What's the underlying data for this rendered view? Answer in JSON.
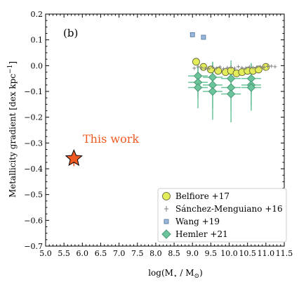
{
  "chart_data": {
    "type": "scatter",
    "panel_label": "(b)",
    "xlabel_main": "log(M",
    "xlabel_sub": "⋆",
    "xlabel_mid": " / M",
    "xlabel_sub2": "⊙",
    "xlabel_end": ")",
    "ylabel": "Metallicity gradient [dex kpc",
    "ylabel_sup": "−1",
    "ylabel_end": "]",
    "xlim": [
      5.0,
      11.5
    ],
    "ylim": [
      -0.7,
      0.2
    ],
    "xticks": [
      {
        "v": 5.0,
        "label": "5.0"
      },
      {
        "v": 5.5,
        "label": "5.5"
      },
      {
        "v": 6.0,
        "label": "6.0"
      },
      {
        "v": 6.5,
        "label": "6.5"
      },
      {
        "v": 7.0,
        "label": "7.0"
      },
      {
        "v": 7.5,
        "label": "7.5"
      },
      {
        "v": 8.0,
        "label": "8.0"
      },
      {
        "v": 8.5,
        "label": "8.5"
      },
      {
        "v": 9.0,
        "label": "9.0"
      },
      {
        "v": 9.5,
        "label": "9.5"
      },
      {
        "v": 10.0,
        "label": "10.0"
      },
      {
        "v": 10.5,
        "label": "10.5"
      },
      {
        "v": 11.0,
        "label": "11.0"
      },
      {
        "v": 11.5,
        "label": "11.5"
      }
    ],
    "yticks": [
      {
        "v": 0.2,
        "label": "0.2"
      },
      {
        "v": 0.1,
        "label": "0.1"
      },
      {
        "v": 0.0,
        "label": "0.0"
      },
      {
        "v": -0.1,
        "label": "−0.1"
      },
      {
        "v": -0.2,
        "label": "−0.2"
      },
      {
        "v": -0.3,
        "label": "−0.3"
      },
      {
        "v": -0.4,
        "label": "−0.4"
      },
      {
        "v": -0.5,
        "label": "−0.5"
      },
      {
        "v": -0.6,
        "label": "−0.6"
      },
      {
        "v": -0.7,
        "label": "−0.7"
      }
    ],
    "this_work": {
      "label": "This work",
      "x": 5.77,
      "y": -0.36,
      "yerr": 0.03,
      "color": "#f05a22"
    },
    "series": [
      {
        "name": "Belfiore +17",
        "marker": "circle",
        "color": "#e3ed5a",
        "points": [
          [
            9.1,
            0.015
          ],
          [
            9.3,
            -0.005
          ],
          [
            9.5,
            -0.015
          ],
          [
            9.7,
            -0.02
          ],
          [
            9.9,
            -0.025
          ],
          [
            10.05,
            -0.02
          ],
          [
            10.2,
            -0.03
          ],
          [
            10.35,
            -0.025
          ],
          [
            10.5,
            -0.02
          ],
          [
            10.65,
            -0.02
          ],
          [
            10.8,
            -0.015
          ],
          [
            11.0,
            -0.005
          ]
        ]
      },
      {
        "name": "Sánchez-Menguiano +16",
        "marker": "plus",
        "color": "#808080",
        "points": [
          [
            9.05,
            -0.01
          ],
          [
            9.15,
            -0.005
          ],
          [
            9.25,
            -0.008
          ],
          [
            9.35,
            -0.01
          ],
          [
            9.45,
            -0.012
          ],
          [
            9.55,
            -0.006
          ],
          [
            9.65,
            -0.01
          ],
          [
            9.75,
            -0.005
          ],
          [
            9.85,
            -0.012
          ],
          [
            9.95,
            -0.008
          ],
          [
            10.05,
            -0.006
          ],
          [
            10.15,
            -0.01
          ],
          [
            10.25,
            -0.004
          ],
          [
            10.35,
            -0.008
          ],
          [
            10.45,
            -0.01
          ],
          [
            10.55,
            -0.005
          ],
          [
            10.65,
            -0.008
          ],
          [
            10.75,
            -0.006
          ],
          [
            10.85,
            -0.004
          ],
          [
            10.95,
            -0.006
          ],
          [
            11.05,
            -0.003
          ],
          [
            11.15,
            -0.002
          ],
          [
            11.25,
            -0.004
          ]
        ]
      },
      {
        "name": "Wang +19",
        "marker": "square",
        "color": "#9ab8dc",
        "points": [
          [
            9.0,
            0.12
          ],
          [
            9.3,
            0.11
          ]
        ]
      },
      {
        "name": "Hemler +21",
        "marker": "diamond",
        "color": "#6cc49a",
        "points": [
          {
            "x": 9.15,
            "y": -0.04,
            "yerr": 0.05
          },
          {
            "x": 9.15,
            "y": -0.065,
            "yerr": 0.06
          },
          {
            "x": 9.15,
            "y": -0.085,
            "yerr": 0.08
          },
          {
            "x": 9.55,
            "y": -0.045,
            "yerr": 0.06
          },
          {
            "x": 9.55,
            "y": -0.075,
            "yerr": 0.09
          },
          {
            "x": 9.55,
            "y": -0.1,
            "yerr": 0.11
          },
          {
            "x": 10.05,
            "y": -0.05,
            "yerr": 0.07
          },
          {
            "x": 10.05,
            "y": -0.085,
            "yerr": 0.09
          },
          {
            "x": 10.05,
            "y": -0.11,
            "yerr": 0.11
          },
          {
            "x": 10.6,
            "y": -0.05,
            "yerr": 0.06
          },
          {
            "x": 10.6,
            "y": -0.075,
            "yerr": 0.08
          },
          {
            "x": 10.6,
            "y": -0.085,
            "yerr": 0.09
          }
        ]
      }
    ],
    "legend_position": "lower-right"
  }
}
